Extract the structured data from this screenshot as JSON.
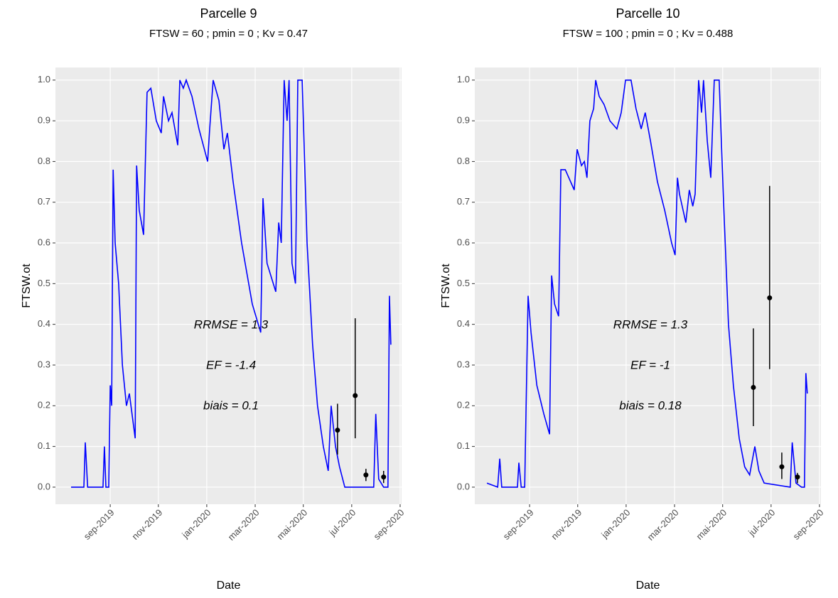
{
  "chart_data": [
    {
      "type": "line",
      "title": "Parcelle 9",
      "subtitle": "FTSW = 60 ; pmin = 0 ; Kv = 0.47",
      "xlabel": "Date",
      "ylabel": "FTSW.ot",
      "grid": true,
      "background": "#ebebeb",
      "color": "#0000ff",
      "xlim": [
        2019.478,
        2020.672
      ],
      "ylim": [
        -0.042,
        1.031
      ],
      "xticks": [
        {
          "value": 2019.667,
          "label": "sep-2019"
        },
        {
          "value": 2019.833,
          "label": "nov-2019"
        },
        {
          "value": 2020.0,
          "label": "jan-2020"
        },
        {
          "value": 2020.167,
          "label": "mar-2020"
        },
        {
          "value": 2020.333,
          "label": "mai-2020"
        },
        {
          "value": 2020.5,
          "label": "jul-2020"
        },
        {
          "value": 2020.667,
          "label": "sep-2020"
        }
      ],
      "yticks": [
        {
          "value": 0,
          "label": "0.0"
        },
        0.1,
        0.2,
        0.3,
        0.4,
        0.5,
        0.6,
        0.7,
        0.8,
        0.9,
        {
          "value": 1,
          "label": "1.0"
        }
      ],
      "x": [
        2019.532,
        2019.576,
        2019.581,
        2019.589,
        2019.642,
        2019.647,
        2019.652,
        2019.662,
        2019.667,
        2019.672,
        2019.677,
        2019.684,
        2019.696,
        2019.709,
        2019.723,
        2019.733,
        2019.753,
        2019.758,
        2019.767,
        2019.782,
        2019.794,
        2019.807,
        2019.826,
        2019.843,
        2019.851,
        2019.868,
        2019.88,
        2019.9,
        2019.907,
        2019.919,
        2019.929,
        2019.949,
        2019.973,
        2020.003,
        2020.01,
        2020.022,
        2020.042,
        2020.059,
        2020.071,
        2020.091,
        2020.12,
        2020.157,
        2020.186,
        2020.194,
        2020.208,
        2020.238,
        2020.248,
        2020.257,
        2020.267,
        2020.277,
        2020.284,
        2020.294,
        2020.306,
        2020.314,
        2020.329,
        2020.346,
        2020.365,
        2020.382,
        2020.402,
        2020.419,
        2020.429,
        2020.444,
        2020.458,
        2020.476,
        2020.576,
        2020.583,
        2020.593,
        2020.61,
        2020.625,
        2020.63,
        2020.635
      ],
      "values": [
        0.0,
        0.0,
        0.11,
        0.0,
        0.0,
        0.1,
        0.0,
        0.0,
        0.25,
        0.2,
        0.78,
        0.6,
        0.5,
        0.3,
        0.2,
        0.23,
        0.12,
        0.79,
        0.68,
        0.62,
        0.97,
        0.98,
        0.9,
        0.87,
        0.96,
        0.9,
        0.92,
        0.84,
        1.0,
        0.98,
        1.0,
        0.96,
        0.88,
        0.8,
        0.88,
        1.0,
        0.95,
        0.83,
        0.87,
        0.75,
        0.6,
        0.45,
        0.38,
        0.71,
        0.55,
        0.48,
        0.65,
        0.6,
        1.0,
        0.9,
        1.0,
        0.55,
        0.5,
        1.0,
        1.0,
        0.6,
        0.35,
        0.2,
        0.1,
        0.04,
        0.2,
        0.1,
        0.05,
        0.0,
        0.0,
        0.18,
        0.02,
        0.0,
        0.0,
        0.47,
        0.35
      ],
      "observed": {
        "color": "#000000",
        "x": [
          2020.451,
          2020.512,
          2020.549,
          2020.61
        ],
        "values": [
          0.14,
          0.225,
          0.03,
          0.025
        ],
        "low": [
          0.08,
          0.12,
          0.015,
          0.01
        ],
        "high": [
          0.205,
          0.415,
          0.045,
          0.04
        ]
      },
      "annotations": [
        "RRMSE = 1.3",
        "EF = -1.4",
        "biais = 0.1"
      ]
    },
    {
      "type": "line",
      "title": "Parcelle 10",
      "subtitle": "FTSW = 100 ; pmin = 0 ; Kv = 0.488",
      "xlabel": "Date",
      "ylabel": "FTSW.ot",
      "grid": true,
      "background": "#ebebeb",
      "color": "#0000ff",
      "xlim": [
        2019.478,
        2020.672
      ],
      "ylim": [
        -0.042,
        1.031
      ],
      "xticks": [
        {
          "value": 2019.667,
          "label": "sep-2019"
        },
        {
          "value": 2019.833,
          "label": "nov-2019"
        },
        {
          "value": 2020.0,
          "label": "jan-2020"
        },
        {
          "value": 2020.167,
          "label": "mar-2020"
        },
        {
          "value": 2020.333,
          "label": "mai-2020"
        },
        {
          "value": 2020.5,
          "label": "jul-2020"
        },
        {
          "value": 2020.667,
          "label": "sep-2020"
        }
      ],
      "yticks": [
        {
          "value": 0,
          "label": "0.0"
        },
        0.1,
        0.2,
        0.3,
        0.4,
        0.5,
        0.6,
        0.7,
        0.8,
        0.9,
        {
          "value": 1,
          "label": "1.0"
        }
      ],
      "x": [
        2019.52,
        2019.557,
        2019.564,
        2019.571,
        2019.625,
        2019.63,
        2019.638,
        2019.65,
        2019.655,
        2019.662,
        2019.672,
        2019.692,
        2019.716,
        2019.736,
        2019.743,
        2019.753,
        2019.767,
        2019.775,
        2019.79,
        2019.821,
        2019.831,
        2019.846,
        2019.856,
        2019.865,
        2019.875,
        2019.888,
        2019.895,
        2019.907,
        2019.924,
        2019.944,
        2019.968,
        2019.983,
        2019.998,
        2020.017,
        2020.034,
        2020.052,
        2020.066,
        2020.084,
        2020.108,
        2020.133,
        2020.157,
        2020.169,
        2020.177,
        2020.184,
        2020.206,
        2020.218,
        2020.23,
        2020.238,
        2020.25,
        2020.26,
        2020.267,
        2020.28,
        2020.292,
        2020.304,
        2020.321,
        2020.336,
        2020.353,
        2020.37,
        2020.39,
        2020.409,
        2020.426,
        2020.444,
        2020.458,
        2020.476,
        2020.566,
        2020.573,
        2020.586,
        2020.605,
        2020.615,
        2020.62,
        2020.625
      ],
      "values": [
        0.01,
        0.0,
        0.07,
        0.0,
        0.0,
        0.06,
        0.0,
        0.0,
        0.2,
        0.47,
        0.38,
        0.25,
        0.18,
        0.13,
        0.52,
        0.45,
        0.42,
        0.78,
        0.78,
        0.73,
        0.83,
        0.79,
        0.8,
        0.76,
        0.9,
        0.93,
        1.0,
        0.96,
        0.94,
        0.9,
        0.88,
        0.92,
        1.0,
        1.0,
        0.93,
        0.88,
        0.92,
        0.85,
        0.75,
        0.68,
        0.6,
        0.57,
        0.76,
        0.72,
        0.65,
        0.73,
        0.69,
        0.72,
        1.0,
        0.92,
        1.0,
        0.85,
        0.76,
        1.0,
        1.0,
        0.7,
        0.4,
        0.25,
        0.12,
        0.05,
        0.03,
        0.1,
        0.04,
        0.01,
        0.0,
        0.11,
        0.01,
        0.0,
        0.0,
        0.28,
        0.23
      ],
      "observed": {
        "color": "#000000",
        "x": [
          2020.439,
          2020.495,
          2020.537,
          2020.591
        ],
        "values": [
          0.245,
          0.465,
          0.05,
          0.025
        ],
        "low": [
          0.15,
          0.29,
          0.02,
          0.01
        ],
        "high": [
          0.39,
          0.74,
          0.085,
          0.035
        ]
      },
      "annotations": [
        "RRMSE = 1.3",
        "EF = -1",
        "biais = 0.18"
      ]
    }
  ]
}
